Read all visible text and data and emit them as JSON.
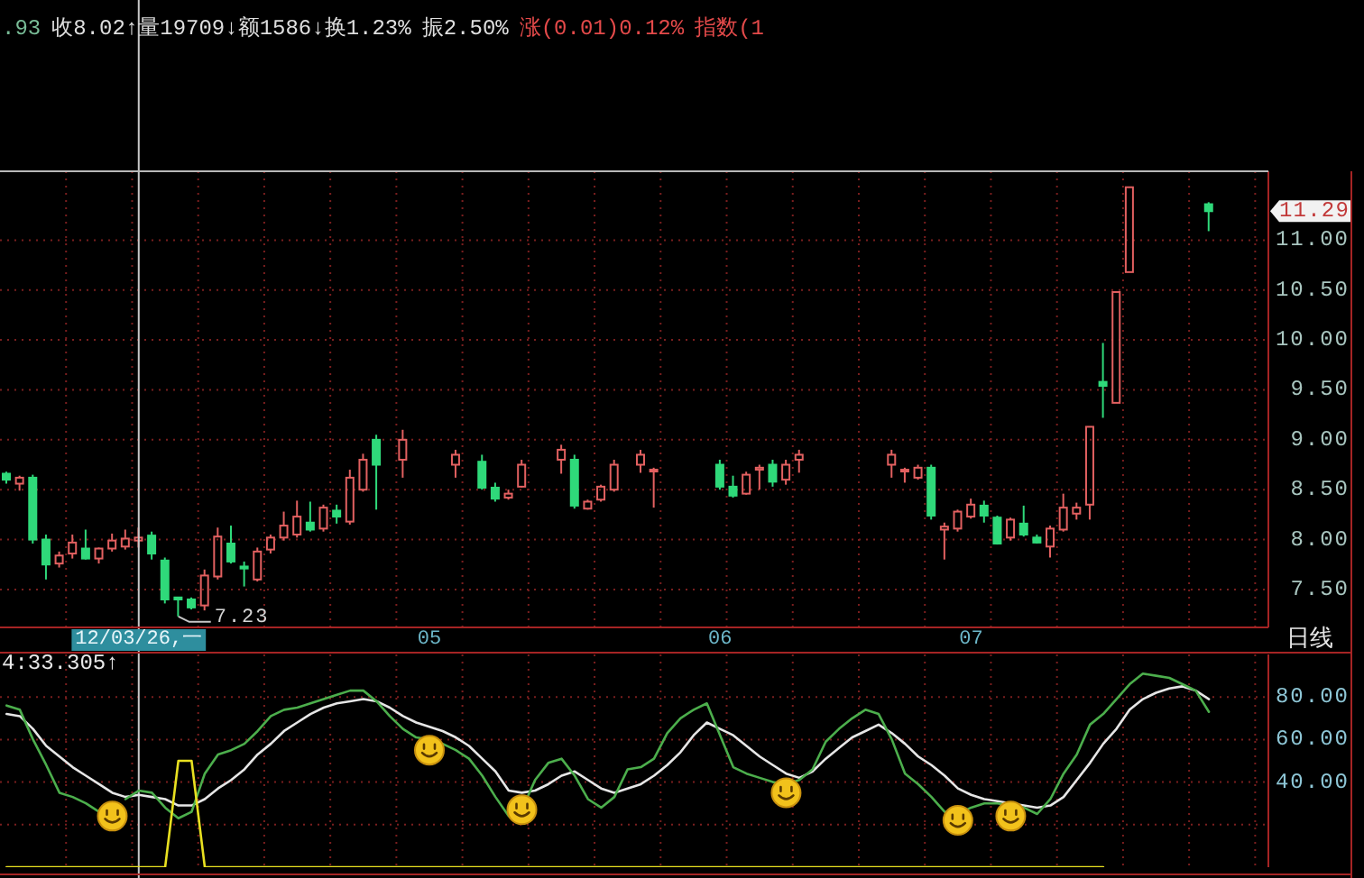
{
  "chart_data": [
    {
      "type": "candlestick",
      "title": ".93 收8.02↑量19709↓额1586↓换1.23% 振2.50% 涨(0.01)0.12% 指数(1",
      "categories": [
        null,
        null,
        null,
        null,
        null,
        null,
        null,
        null,
        null,
        null,
        "12/03/26,一",
        null,
        null,
        null,
        null,
        null,
        null,
        null,
        null,
        null,
        null,
        null,
        null,
        null,
        null,
        null,
        null,
        null,
        null,
        null,
        null,
        null,
        "05",
        null,
        null,
        null,
        null,
        null,
        null,
        null,
        null,
        null,
        null,
        null,
        null,
        null,
        null,
        null,
        null,
        null,
        null,
        null,
        null,
        null,
        "06",
        null,
        null,
        null,
        null,
        null,
        null,
        null,
        null,
        null,
        null,
        null,
        null,
        null,
        null,
        null,
        null,
        null,
        null,
        "07",
        null,
        null,
        null,
        null,
        null,
        null,
        null,
        null,
        null,
        null,
        null,
        null,
        null,
        null,
        null,
        null,
        null,
        null,
        null,
        null,
        null,
        null
      ],
      "ohlc": [
        [
          8.66,
          8.68,
          8.56,
          8.6
        ],
        [
          8.56,
          8.64,
          8.49,
          8.62
        ],
        [
          8.62,
          8.65,
          7.96,
          8.0
        ],
        [
          8.0,
          8.05,
          7.6,
          7.75
        ],
        [
          7.76,
          7.88,
          7.72,
          7.84
        ],
        [
          7.86,
          8.05,
          7.81,
          7.97
        ],
        [
          7.91,
          8.1,
          7.8,
          7.81
        ],
        [
          7.81,
          7.92,
          7.76,
          7.91
        ],
        [
          7.91,
          8.06,
          7.88,
          7.99
        ],
        [
          7.93,
          8.1,
          7.9,
          8.01
        ],
        [
          7.99,
          8.12,
          7.92,
          8.02
        ],
        [
          8.04,
          8.08,
          7.8,
          7.86
        ],
        [
          7.79,
          7.82,
          7.36,
          7.4
        ],
        [
          7.42,
          7.42,
          7.23,
          7.4
        ],
        [
          7.4,
          7.42,
          7.3,
          7.32
        ],
        [
          7.34,
          7.7,
          7.29,
          7.64
        ],
        [
          7.63,
          8.12,
          7.6,
          8.03
        ],
        [
          7.96,
          8.14,
          7.76,
          7.78
        ],
        [
          7.73,
          7.78,
          7.53,
          7.71
        ],
        [
          7.6,
          7.92,
          7.58,
          7.88
        ],
        [
          7.9,
          8.05,
          7.86,
          8.02
        ],
        [
          8.02,
          8.28,
          7.99,
          8.14
        ],
        [
          8.05,
          8.39,
          8.02,
          8.23
        ],
        [
          8.17,
          8.38,
          8.08,
          8.1
        ],
        [
          8.11,
          8.35,
          8.08,
          8.32
        ],
        [
          8.29,
          8.35,
          8.16,
          8.23
        ],
        [
          8.18,
          8.7,
          8.15,
          8.62
        ],
        [
          8.5,
          8.86,
          8.48,
          8.8
        ],
        [
          9.0,
          9.05,
          8.3,
          8.75
        ],
        null,
        [
          8.8,
          9.1,
          8.62,
          9.0
        ],
        null,
        null,
        null,
        [
          8.75,
          8.9,
          8.62,
          8.85
        ],
        null,
        [
          8.78,
          8.85,
          8.5,
          8.52
        ],
        [
          8.52,
          8.57,
          8.38,
          8.41
        ],
        [
          8.42,
          8.5,
          8.4,
          8.46
        ],
        [
          8.53,
          8.8,
          8.52,
          8.75
        ],
        null,
        null,
        [
          8.8,
          8.95,
          8.66,
          8.9
        ],
        [
          8.8,
          8.85,
          8.31,
          8.34
        ],
        [
          8.31,
          8.4,
          8.3,
          8.38
        ],
        [
          8.4,
          8.55,
          8.38,
          8.53
        ],
        [
          8.5,
          8.8,
          8.48,
          8.75
        ],
        null,
        [
          8.75,
          8.9,
          8.67,
          8.85
        ],
        [
          8.69,
          8.72,
          8.32,
          8.7
        ],
        null,
        null,
        null,
        null,
        [
          8.75,
          8.8,
          8.5,
          8.53
        ],
        [
          8.53,
          8.64,
          8.42,
          8.44
        ],
        [
          8.46,
          8.68,
          8.45,
          8.65
        ],
        [
          8.7,
          8.75,
          8.5,
          8.72
        ],
        [
          8.75,
          8.8,
          8.53,
          8.58
        ],
        [
          8.6,
          8.8,
          8.55,
          8.75
        ],
        [
          8.8,
          8.9,
          8.67,
          8.85
        ],
        null,
        null,
        null,
        null,
        null,
        null,
        [
          8.75,
          8.9,
          8.62,
          8.85
        ],
        [
          8.69,
          8.72,
          8.57,
          8.7
        ],
        [
          8.62,
          8.75,
          8.6,
          8.72
        ],
        [
          8.72,
          8.75,
          8.2,
          8.24
        ],
        [
          8.1,
          8.17,
          7.8,
          8.13
        ],
        [
          8.11,
          8.3,
          8.08,
          8.28
        ],
        [
          8.23,
          8.41,
          8.21,
          8.35
        ],
        [
          8.34,
          8.39,
          8.17,
          8.24
        ],
        [
          8.22,
          8.24,
          7.95,
          7.96
        ],
        [
          8.02,
          8.22,
          7.99,
          8.2
        ],
        [
          8.16,
          8.34,
          8.03,
          8.05
        ],
        [
          8.02,
          8.05,
          7.96,
          7.97
        ],
        [
          7.93,
          8.14,
          7.82,
          8.11
        ],
        [
          8.1,
          8.46,
          8.08,
          8.32
        ],
        [
          8.26,
          8.37,
          8.2,
          8.32
        ],
        [
          8.35,
          9.13,
          8.2,
          9.13
        ],
        [
          9.58,
          9.97,
          9.22,
          9.54
        ],
        [
          9.37,
          10.48,
          9.37,
          10.48
        ],
        [
          10.68,
          11.53,
          10.68,
          11.53
        ],
        null,
        null,
        null,
        null,
        null,
        [
          11.36,
          11.38,
          11.09,
          11.29
        ],
        null,
        null,
        null,
        null
      ],
      "colors": [
        "#2fd97a",
        "#e26060",
        "#2fd97a",
        "#2fd97a",
        "#e26060",
        "#e26060",
        "#2fd97a",
        "#e26060",
        "#e26060",
        "#e26060",
        "#e26060",
        "#2fd97a",
        "#2fd97a",
        "#2fd97a",
        "#2fd97a",
        "#e26060",
        "#e26060",
        "#2fd97a",
        "#2fd97a",
        "#e26060",
        "#e26060",
        "#e26060",
        "#e26060",
        "#2fd97a",
        "#e26060",
        "#2fd97a",
        "#e26060",
        "#e26060",
        "#2fd97a",
        null,
        "#e26060",
        null,
        null,
        null,
        "#e26060",
        null,
        "#2fd97a",
        "#2fd97a",
        "#e26060",
        "#e26060",
        null,
        null,
        "#e26060",
        "#2fd97a",
        "#e26060",
        "#e26060",
        "#e26060",
        null,
        "#e26060",
        "#e26060",
        null,
        null,
        null,
        null,
        "#2fd97a",
        "#2fd97a",
        "#e26060",
        "#e26060",
        "#2fd97a",
        "#e26060",
        "#e26060",
        null,
        null,
        null,
        null,
        null,
        null,
        "#e26060",
        "#e26060",
        "#e26060",
        "#2fd97a",
        "#e26060",
        "#e26060",
        "#e26060",
        "#2fd97a",
        "#2fd97a",
        "#e26060",
        "#2fd97a",
        "#2fd97a",
        "#e26060",
        "#e26060",
        "#e26060",
        "#e26060",
        "#2fd97a",
        "#e26060",
        "#e26060",
        null,
        null,
        null,
        null,
        null,
        "#2fd97a",
        null,
        null,
        null,
        null
      ],
      "ylim": [
        7.12,
        11.69
      ],
      "yticks": [
        {
          "value": 7.5,
          "label": "7.50"
        },
        {
          "value": 8,
          "label": "8.00"
        },
        {
          "value": 8.5,
          "label": "8.50"
        },
        {
          "value": 9,
          "label": "9.00"
        },
        {
          "value": 9.5,
          "label": "9.50"
        },
        {
          "value": 10,
          "label": "10.00"
        },
        {
          "value": 10.5,
          "label": "10.50"
        },
        {
          "value": 11,
          "label": "11.00"
        },
        {
          "value": 11.29,
          "label": "11.29"
        }
      ],
      "grid": true,
      "xlabel": "日线",
      "annotations": [
        "7.23"
      ],
      "ref_lines": [
        {
          "axis": "x",
          "value": "12/03/26,一",
          "color": "#c8c8c8"
        }
      ]
    },
    {
      "type": "line",
      "title": "4:33.305↑",
      "categories": [
        null,
        null,
        null,
        null,
        null,
        null,
        null,
        null,
        null,
        null,
        "12/03/26,一",
        null,
        null,
        null,
        null,
        null,
        null,
        null,
        null,
        null,
        null,
        null,
        null,
        null,
        null,
        null,
        null,
        null,
        null,
        null,
        null,
        null,
        "05",
        null,
        null,
        null,
        null,
        null,
        null,
        null,
        null,
        null,
        null,
        null,
        null,
        null,
        null,
        null,
        null,
        null,
        null,
        null,
        null,
        null,
        "06",
        null,
        null,
        null,
        null,
        null,
        null,
        null,
        null,
        null,
        null,
        null,
        null,
        null,
        null,
        null,
        null,
        null,
        null,
        "07",
        null,
        null,
        null,
        null,
        null,
        null,
        null,
        null,
        null,
        null,
        null,
        null,
        null,
        null,
        null,
        null,
        null,
        null,
        null,
        null,
        null,
        null
      ],
      "series": [
        {
          "color": "#e6e6e6",
          "values": [
            72,
            71,
            65,
            57,
            52,
            47,
            43,
            39,
            35,
            33,
            34,
            33,
            32,
            29,
            29,
            32,
            37,
            41,
            46,
            53,
            58,
            64,
            68,
            72,
            75,
            77,
            78,
            79,
            78,
            75,
            71,
            68,
            66,
            64,
            61,
            57,
            51,
            45,
            36,
            35,
            36,
            39,
            43,
            45,
            41,
            37,
            35,
            37,
            39,
            43,
            48,
            54,
            62,
            68,
            65,
            62,
            57,
            52,
            48,
            44,
            42,
            45,
            51,
            56,
            61,
            64,
            67,
            63,
            58,
            52,
            48,
            43,
            37,
            34,
            32,
            31,
            30,
            29,
            28,
            29,
            33,
            41,
            49,
            58,
            65,
            74,
            79,
            82,
            84,
            85,
            83,
            79,
            null,
            null,
            null,
            null
          ]
        },
        {
          "color": "#4cae4c",
          "values": [
            76,
            74,
            60,
            48,
            35,
            33,
            30,
            26,
            null,
            32,
            36,
            35,
            28,
            23,
            26,
            44,
            53,
            55,
            58,
            64,
            71,
            74,
            75,
            77,
            79,
            81,
            83,
            83,
            78,
            71,
            65,
            61,
            60,
            58,
            55,
            51,
            43,
            33,
            24,
            27,
            41,
            49,
            51,
            43,
            32,
            28,
            33,
            46,
            47,
            51,
            63,
            70,
            74,
            77,
            62,
            47,
            44,
            42,
            40,
            39,
            41,
            46,
            59,
            65,
            70,
            74,
            72,
            60,
            44,
            39,
            33,
            26,
            25,
            28,
            30,
            30,
            29,
            28,
            25,
            32,
            44,
            53,
            67,
            72,
            79,
            86,
            91,
            90,
            89,
            86,
            83,
            73,
            null,
            null,
            null,
            null
          ]
        },
        {
          "color": "#e8e020",
          "values": [
            0,
            0,
            0,
            0,
            0,
            0,
            0,
            0,
            0,
            0,
            0,
            0,
            0,
            50,
            50,
            0,
            0,
            0,
            0,
            0,
            0,
            0,
            0,
            0,
            0,
            0,
            0,
            0,
            0,
            0,
            0,
            0,
            0,
            0,
            0,
            0,
            0,
            0,
            0,
            0,
            0,
            0,
            0,
            0,
            0,
            0,
            0,
            0,
            0,
            0,
            0,
            0,
            0,
            0,
            0,
            0,
            0,
            0,
            0,
            0,
            0,
            0,
            0,
            0,
            0,
            0,
            0,
            0,
            0,
            0,
            0,
            0,
            0,
            0,
            0,
            0,
            0,
            0,
            0,
            0,
            0,
            0,
            0,
            0,
            null,
            null,
            null,
            null,
            null,
            null,
            null,
            null,
            null,
            null,
            null,
            null
          ]
        },
        {
          "type": "scatter",
          "color": "#f2c21b",
          "marker": "circle",
          "values": [
            null,
            null,
            null,
            null,
            null,
            null,
            null,
            null,
            24,
            null,
            null,
            null,
            null,
            null,
            null,
            null,
            null,
            null,
            null,
            null,
            null,
            null,
            null,
            null,
            null,
            null,
            null,
            null,
            null,
            null,
            null,
            null,
            55,
            null,
            null,
            null,
            null,
            null,
            null,
            27,
            null,
            null,
            null,
            null,
            null,
            null,
            null,
            null,
            null,
            null,
            null,
            null,
            null,
            null,
            null,
            null,
            null,
            null,
            null,
            35,
            null,
            null,
            null,
            null,
            null,
            null,
            null,
            null,
            null,
            null,
            null,
            null,
            22,
            null,
            null,
            null,
            24,
            null,
            null,
            null,
            null,
            null,
            null,
            null,
            null,
            null,
            null,
            null,
            null,
            null,
            null,
            null,
            null,
            null,
            null,
            null
          ]
        }
      ],
      "ylim": [
        0,
        100
      ],
      "yticks": [
        {
          "value": 20,
          "label": null
        },
        {
          "value": 40,
          "label": "40.00"
        },
        {
          "value": 60,
          "label": "60.00"
        },
        {
          "value": 80,
          "label": "80.00"
        }
      ],
      "grid": true,
      "tick_labels": "y",
      "ref_lines": [
        {
          "axis": "x",
          "value": "12/03/26,一",
          "color": "#c8c8c8"
        }
      ]
    }
  ]
}
